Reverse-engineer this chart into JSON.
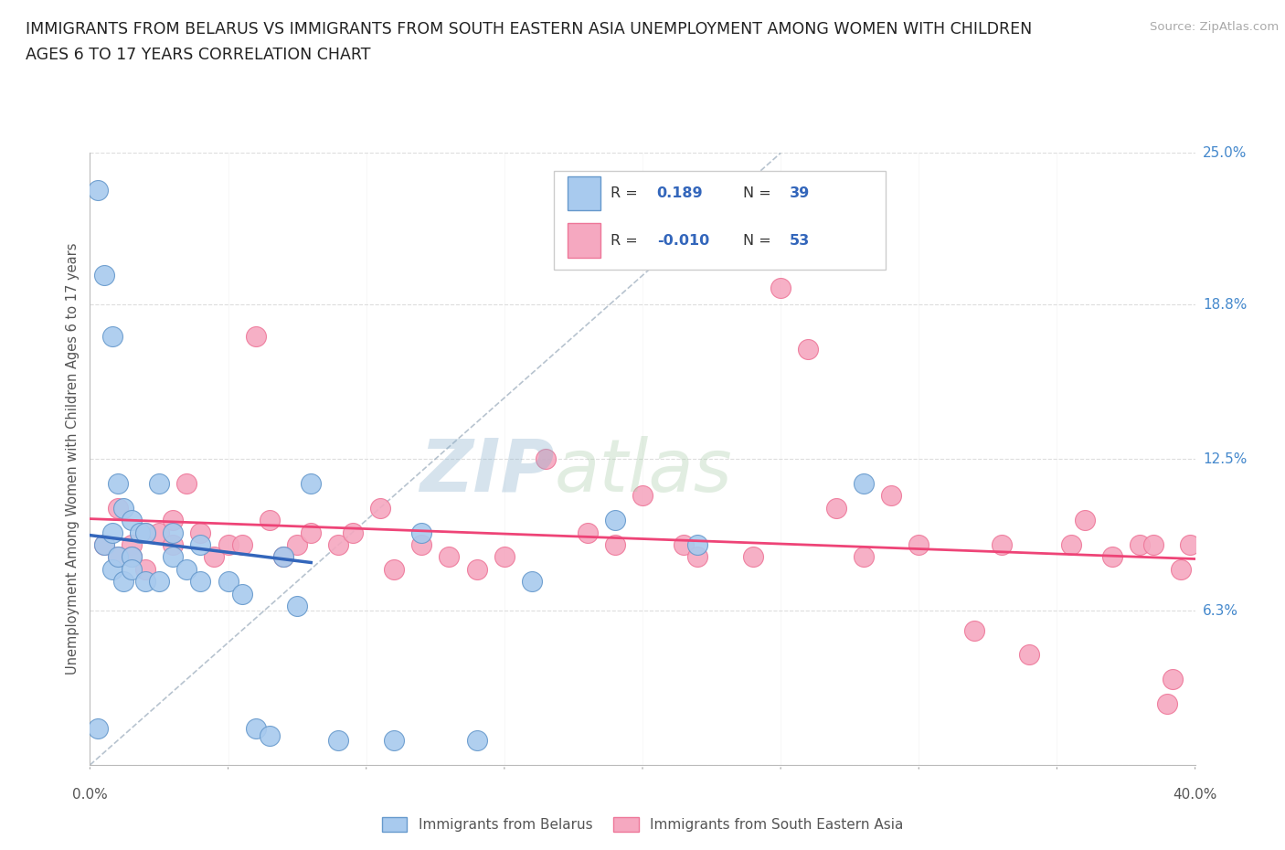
{
  "title_line1": "IMMIGRANTS FROM BELARUS VS IMMIGRANTS FROM SOUTH EASTERN ASIA UNEMPLOYMENT AMONG WOMEN WITH CHILDREN",
  "title_line2": "AGES 6 TO 17 YEARS CORRELATION CHART",
  "source": "Source: ZipAtlas.com",
  "ylabel": "Unemployment Among Women with Children Ages 6 to 17 years",
  "ytick_labels": [
    "0.0%",
    "6.3%",
    "12.5%",
    "18.8%",
    "25.0%"
  ],
  "ytick_values": [
    0.0,
    6.3,
    12.5,
    18.8,
    25.0
  ],
  "xtick_labels": [
    "0.0%",
    "40.0%"
  ],
  "xlim": [
    0.0,
    40.0
  ],
  "ylim": [
    0.0,
    25.0
  ],
  "r_belarus": 0.189,
  "n_belarus": 39,
  "r_sea": -0.01,
  "n_sea": 53,
  "color_belarus": "#a8caee",
  "color_sea": "#f5a8c0",
  "color_edge_belarus": "#6699cc",
  "color_edge_sea": "#ee7799",
  "color_trend_belarus": "#3366bb",
  "color_trend_sea": "#ee4477",
  "color_diagonal": "#99aabb",
  "watermark_zip": "ZIP",
  "watermark_atlas": "atlas",
  "legend_label_belarus": "Immigrants from Belarus",
  "legend_label_sea": "Immigrants from South Eastern Asia",
  "belarus_x": [
    0.3,
    0.3,
    0.5,
    0.5,
    0.8,
    0.8,
    0.8,
    1.0,
    1.0,
    1.2,
    1.2,
    1.5,
    1.5,
    1.5,
    1.8,
    2.0,
    2.0,
    2.5,
    2.5,
    3.0,
    3.0,
    3.5,
    4.0,
    4.0,
    5.0,
    5.5,
    6.0,
    6.5,
    7.0,
    7.5,
    8.0,
    9.0,
    11.0,
    12.0,
    14.0,
    16.0,
    19.0,
    22.0,
    28.0
  ],
  "belarus_y": [
    23.5,
    1.5,
    20.0,
    9.0,
    17.5,
    9.5,
    8.0,
    11.5,
    8.5,
    10.5,
    7.5,
    10.0,
    8.5,
    8.0,
    9.5,
    9.5,
    7.5,
    11.5,
    7.5,
    9.5,
    8.5,
    8.0,
    9.0,
    7.5,
    7.5,
    7.0,
    1.5,
    1.2,
    8.5,
    6.5,
    11.5,
    1.0,
    1.0,
    9.5,
    1.0,
    7.5,
    10.0,
    9.0,
    11.5
  ],
  "sea_x": [
    0.5,
    1.0,
    1.0,
    1.5,
    1.5,
    2.0,
    2.0,
    2.5,
    3.0,
    3.0,
    3.5,
    4.0,
    4.5,
    5.0,
    5.5,
    6.0,
    6.5,
    7.0,
    7.5,
    8.0,
    9.0,
    9.5,
    10.5,
    11.0,
    12.0,
    13.0,
    14.0,
    15.0,
    16.5,
    18.0,
    19.0,
    20.0,
    21.5,
    22.0,
    24.0,
    25.0,
    26.0,
    27.0,
    28.0,
    29.0,
    30.0,
    32.0,
    33.0,
    34.0,
    35.5,
    36.0,
    37.0,
    38.0,
    38.5,
    39.0,
    39.2,
    39.5,
    39.8
  ],
  "sea_y": [
    9.0,
    10.5,
    8.5,
    9.0,
    8.5,
    9.5,
    8.0,
    9.5,
    9.0,
    10.0,
    11.5,
    9.5,
    8.5,
    9.0,
    9.0,
    17.5,
    10.0,
    8.5,
    9.0,
    9.5,
    9.0,
    9.5,
    10.5,
    8.0,
    9.0,
    8.5,
    8.0,
    8.5,
    12.5,
    9.5,
    9.0,
    11.0,
    9.0,
    8.5,
    8.5,
    19.5,
    17.0,
    10.5,
    8.5,
    11.0,
    9.0,
    5.5,
    9.0,
    4.5,
    9.0,
    10.0,
    8.5,
    9.0,
    9.0,
    2.5,
    3.5,
    8.0,
    9.0
  ]
}
